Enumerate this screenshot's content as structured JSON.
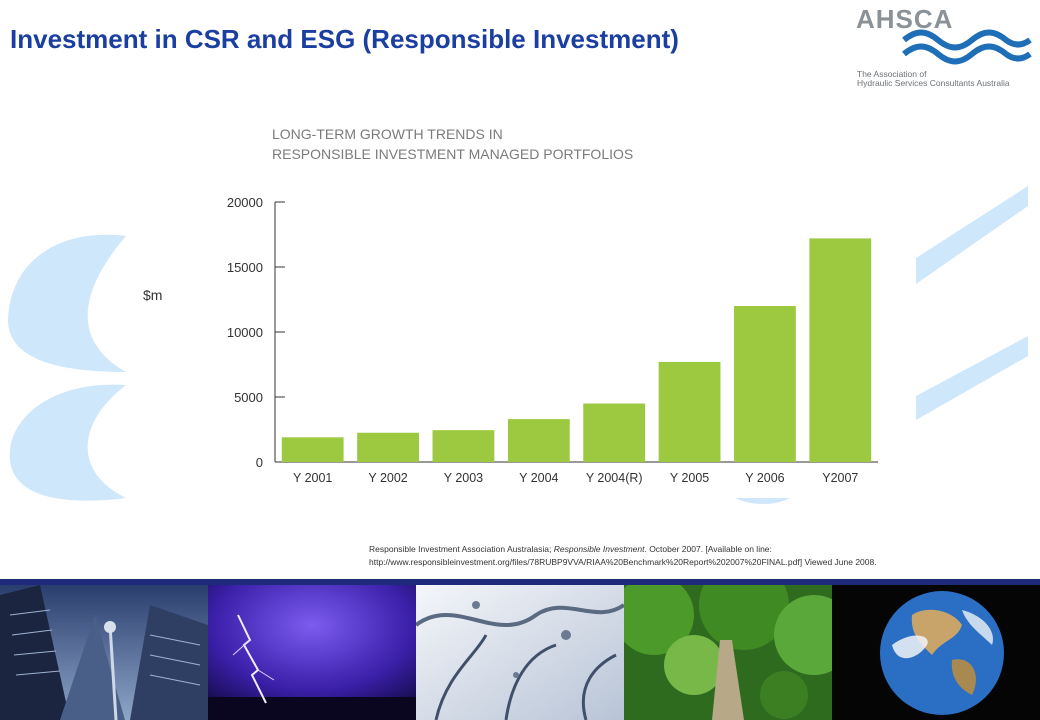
{
  "header": {
    "title": "Investment in CSR and ESG (Responsible Investment)"
  },
  "logo": {
    "name": "AHSCA",
    "subtitle_line1": "The Association of",
    "subtitle_line2": "Hydraulic Services Consultants Australia"
  },
  "chart_data": {
    "type": "bar",
    "title_line1": "LONG-TERM GROWTH TRENDS IN",
    "title_line2": "RESPONSIBLE INVESTMENT MANAGED PORTFOLIOS",
    "ylabel": "$m",
    "xlabel": "",
    "categories": [
      "Y 2001",
      "Y 2002",
      "Y 2003",
      "Y 2004",
      "Y 2004(R)",
      "Y 2005",
      "Y 2006",
      "Y2007"
    ],
    "values": [
      1900,
      2250,
      2450,
      3300,
      4500,
      7700,
      12000,
      17200
    ],
    "yticks": [
      "20000",
      "15000",
      "10000",
      "5000",
      "0"
    ],
    "ylim": [
      0,
      20000
    ],
    "bar_color": "#9dc940",
    "grid": false,
    "legend": "none"
  },
  "citation": {
    "line1_prefix": "Responsible Investment Association Australasia; ",
    "line1_italic": "Responsible Investment",
    "line1_suffix": ". October 2007. [Available on line:",
    "line2": "http://www.responsibleinvestment.org/files/78RUBP9VVA/RIAA%20Benchmark%20Report%202007%20FINAL.pdf] Viewed June 2008."
  },
  "colors": {
    "title": "#1a3fa0",
    "decor": "#cfe7fb",
    "bottom_bar": "#1e2b7a"
  },
  "photos": [
    "city-skyline",
    "lightning-storm",
    "water-splash",
    "forest-trees",
    "earth-globe"
  ]
}
